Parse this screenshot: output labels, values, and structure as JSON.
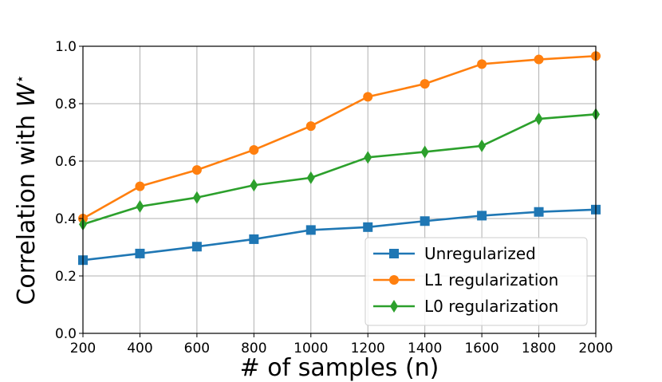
{
  "chart_data": {
    "type": "line",
    "x": [
      200,
      400,
      600,
      800,
      1000,
      1200,
      1400,
      1600,
      1800,
      2000
    ],
    "xlabel": "# of samples (n)",
    "ylabel": "Correlation with W*",
    "xlim": [
      200,
      2000
    ],
    "ylim": [
      0.0,
      1.0
    ],
    "xticks": [
      "200",
      "400",
      "600",
      "800",
      "1000",
      "1200",
      "1400",
      "1600",
      "1800",
      "2000"
    ],
    "yticks": [
      "0.0",
      "0.2",
      "0.4",
      "0.6",
      "0.8",
      "1.0"
    ],
    "grid": true,
    "legend_position": "lower-right",
    "series": [
      {
        "name": "Unregularized",
        "color": "#1f77b4",
        "marker": "square",
        "values": [
          0.255,
          0.278,
          0.302,
          0.328,
          0.36,
          0.37,
          0.391,
          0.41,
          0.423,
          0.431
        ]
      },
      {
        "name": "L1 regularization",
        "color": "#ff7f0e",
        "marker": "circle",
        "values": [
          0.4,
          0.512,
          0.569,
          0.639,
          0.722,
          0.824,
          0.869,
          0.938,
          0.954,
          0.966
        ]
      },
      {
        "name": "L0 regularization",
        "color": "#2ca02c",
        "marker": "diamond",
        "values": [
          0.38,
          0.442,
          0.473,
          0.516,
          0.542,
          0.613,
          0.632,
          0.653,
          0.747,
          0.763
        ]
      }
    ]
  }
}
